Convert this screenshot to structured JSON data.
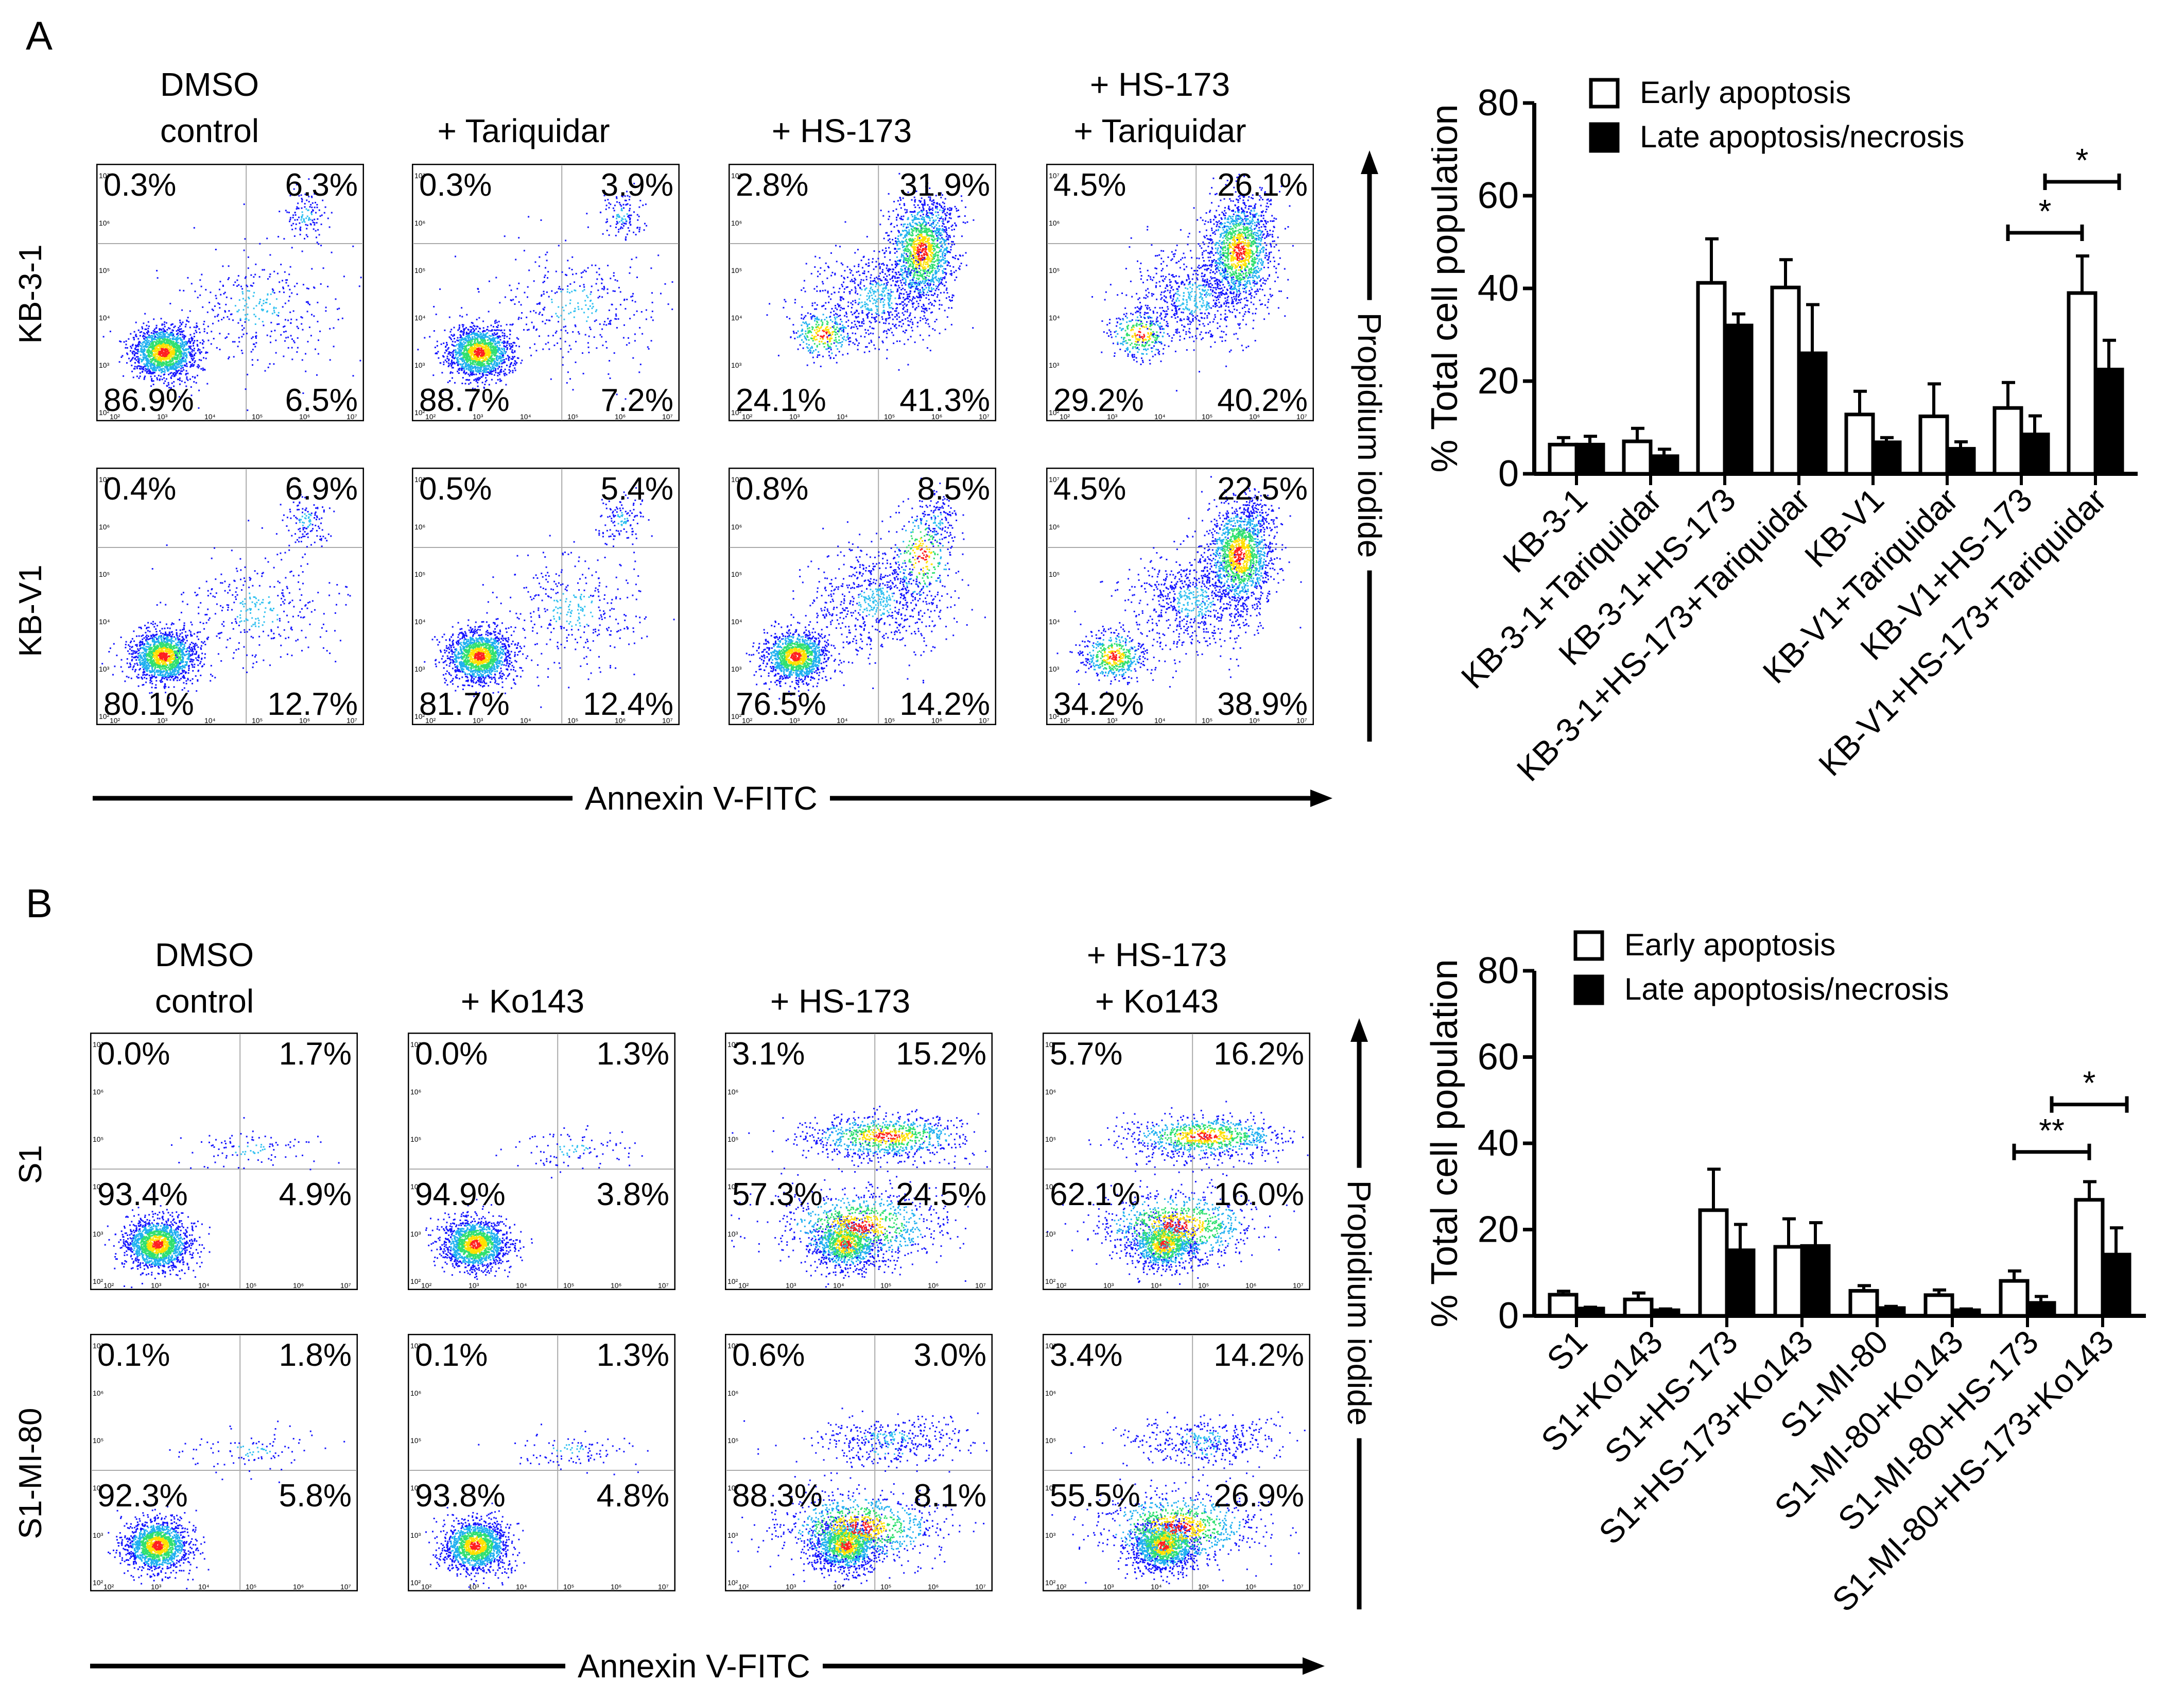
{
  "panel_a": {
    "letter": "A",
    "conditions": [
      {
        "line1": "DMSO",
        "line2": "control"
      },
      {
        "line1": "",
        "line2": "+ Tariquidar"
      },
      {
        "line1": "",
        "line2": "+ HS-173"
      },
      {
        "line1": "+ HS-173",
        "line2": "+ Tariquidar"
      }
    ],
    "rows": [
      "KB-3-1",
      "KB-V1"
    ],
    "quadrants": [
      [
        [
          "0.3%",
          "6.3%",
          "86.9%",
          "6.5%"
        ],
        [
          "0.3%",
          "3.9%",
          "88.7%",
          "7.2%"
        ],
        [
          "2.8%",
          "31.9%",
          "24.1%",
          "41.3%"
        ],
        [
          "4.5%",
          "26.1%",
          "29.2%",
          "40.2%"
        ]
      ],
      [
        [
          "0.4%",
          "6.9%",
          "80.1%",
          "12.7%"
        ],
        [
          "0.5%",
          "5.4%",
          "81.7%",
          "12.4%"
        ],
        [
          "0.8%",
          "8.5%",
          "76.5%",
          "14.2%"
        ],
        [
          "4.5%",
          "22.5%",
          "34.2%",
          "38.9%"
        ]
      ]
    ],
    "x_axis_label": "Annexin V-FITC",
    "y_axis_label": "Propidium iodide"
  },
  "panel_b": {
    "letter": "B",
    "conditions": [
      {
        "line1": "DMSO",
        "line2": "control"
      },
      {
        "line1": "",
        "line2": "+ Ko143"
      },
      {
        "line1": "",
        "line2": "+ HS-173"
      },
      {
        "line1": "+ HS-173",
        "line2": "+ Ko143"
      }
    ],
    "rows": [
      "S1",
      "S1-MI-80"
    ],
    "quadrants": [
      [
        [
          "0.0%",
          "1.7%",
          "93.4%",
          "4.9%"
        ],
        [
          "0.0%",
          "1.3%",
          "94.9%",
          "3.8%"
        ],
        [
          "3.1%",
          "15.2%",
          "57.3%",
          "24.5%"
        ],
        [
          "5.7%",
          "16.2%",
          "62.1%",
          "16.0%"
        ]
      ],
      [
        [
          "0.1%",
          "1.8%",
          "92.3%",
          "5.8%"
        ],
        [
          "0.1%",
          "1.3%",
          "93.8%",
          "4.8%"
        ],
        [
          "0.6%",
          "3.0%",
          "88.3%",
          "8.1%"
        ],
        [
          "3.4%",
          "14.2%",
          "55.5%",
          "26.9%"
        ]
      ]
    ],
    "x_axis_label": "Annexin V-FITC",
    "y_axis_label": "Propidium iodide"
  },
  "flow_tick_labels": [
    "10²",
    "10³",
    "10⁴",
    "10⁵",
    "10⁶",
    "10⁷"
  ],
  "chart_data": [
    {
      "type": "bar",
      "ylabel": "% Total cell population",
      "ylim": [
        0,
        80
      ],
      "yticks": [
        0,
        20,
        40,
        60,
        80
      ],
      "legend_placement": "top-left",
      "categories": [
        "KB-3-1",
        "KB-3-1+Tariquidar",
        "KB-3-1+HS-173",
        "KB-3-1+HS-173+Tariquidar",
        "KB-V1",
        "KB-V1+Tariquidar",
        "KB-V1+HS-173",
        "KB-V1+HS-173+Tariquidar"
      ],
      "series": [
        {
          "name": "Early apoptosis",
          "fill": "#ffffff",
          "values": [
            6.3,
            7.0,
            41.2,
            40.2,
            12.8,
            12.4,
            14.2,
            39.0
          ],
          "errors": [
            1.5,
            2.8,
            9.5,
            6.0,
            5.0,
            7.0,
            5.5,
            8.0
          ]
        },
        {
          "name": "Late apoptosis/necrosis",
          "fill": "#000000",
          "values": [
            6.3,
            3.8,
            32.0,
            26.0,
            6.8,
            5.4,
            8.5,
            22.5
          ],
          "errors": [
            1.8,
            1.5,
            2.5,
            10.5,
            1.0,
            1.5,
            4.0,
            6.3
          ]
        }
      ],
      "significance": [
        {
          "from": 6,
          "to": 7,
          "label": "*",
          "level": 52
        },
        {
          "from": 6.5,
          "to": 7.5,
          "label": "*",
          "level": 63
        }
      ]
    },
    {
      "type": "bar",
      "ylabel": "% Total cell population",
      "ylim": [
        0,
        80
      ],
      "yticks": [
        0,
        20,
        40,
        60,
        80
      ],
      "legend_placement": "top-left",
      "categories": [
        "S1",
        "S1+Ko143",
        "S1+HS-173",
        "S1+HS-173+Ko143",
        "S1-MI-80",
        "S1-MI-80+Ko143",
        "S1-MI-80+HS-173",
        "S1-MI-80+HS-173+Ko143"
      ],
      "series": [
        {
          "name": "Early apoptosis",
          "fill": "#ffffff",
          "values": [
            4.9,
            3.8,
            24.5,
            16.0,
            5.8,
            4.8,
            8.1,
            26.9
          ],
          "errors": [
            0.8,
            1.5,
            9.5,
            6.5,
            1.2,
            1.2,
            2.3,
            4.2
          ]
        },
        {
          "name": "Late apoptosis/necrosis",
          "fill": "#000000",
          "values": [
            1.7,
            1.3,
            15.2,
            16.2,
            1.8,
            1.3,
            3.0,
            14.2
          ],
          "errors": [
            0.3,
            0.3,
            6.0,
            5.4,
            0.4,
            0.3,
            1.5,
            6.2
          ]
        }
      ],
      "significance": [
        {
          "from": 6,
          "to": 7,
          "label": "**",
          "level": 38
        },
        {
          "from": 6.5,
          "to": 7.5,
          "label": "*",
          "level": 49
        }
      ]
    }
  ]
}
